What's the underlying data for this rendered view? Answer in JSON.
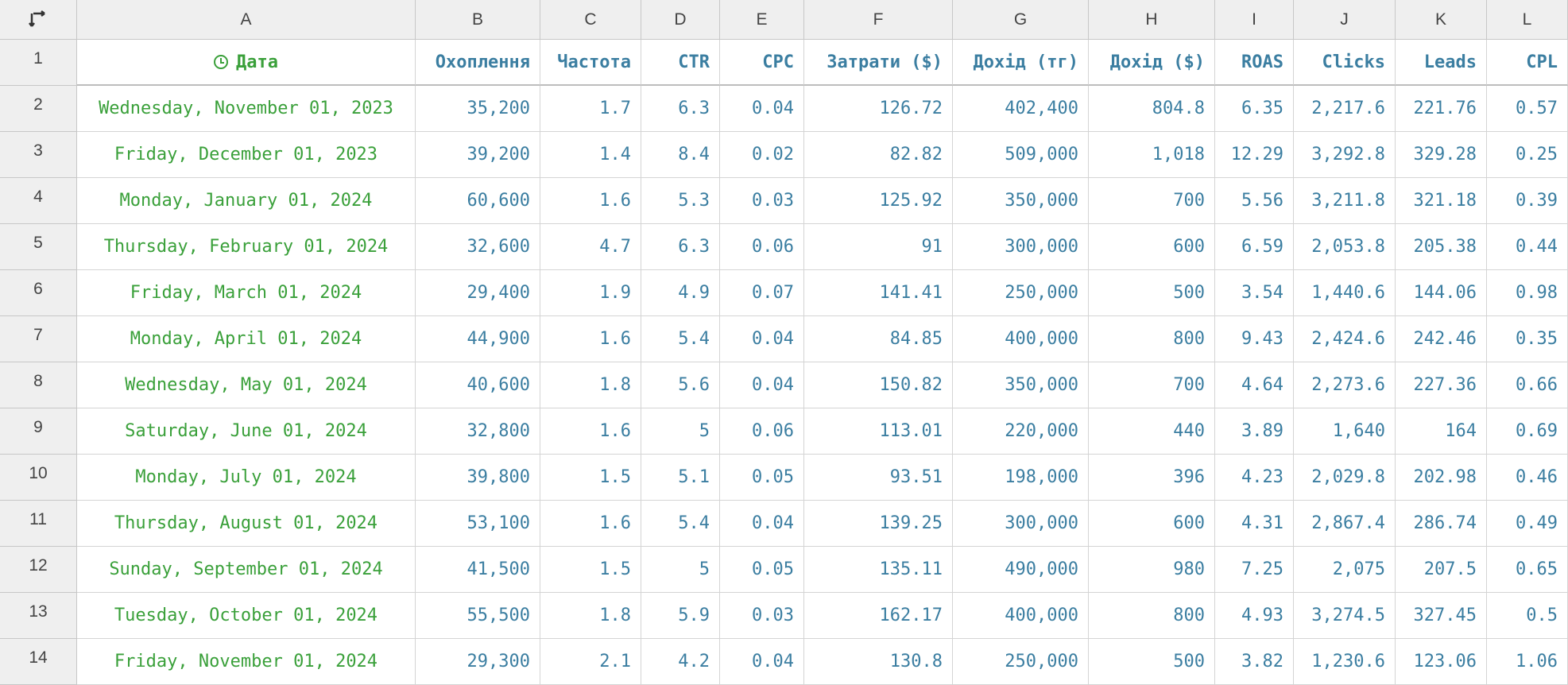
{
  "corner_icon": "sort-arrows-icon",
  "colors": {
    "accent_number": "#3b7ea1",
    "accent_date": "#3aa03a",
    "header_bg": "#efefef"
  },
  "columns": [
    "A",
    "B",
    "C",
    "D",
    "E",
    "F",
    "G",
    "H",
    "I",
    "J",
    "K",
    "L"
  ],
  "header_row": {
    "row_number": "1",
    "date_icon": "clock-icon",
    "cells": [
      "Дата",
      "Охоплення",
      "Частота",
      "CTR",
      "CPC",
      "Затрати ($)",
      "Дохід (тг)",
      "Дохід ($)",
      "ROAS",
      "Clicks",
      "Leads",
      "CPL"
    ]
  },
  "rows": [
    {
      "num": "2",
      "cells": [
        "Wednesday, November 01, 2023",
        "35,200",
        "1.7",
        "6.3",
        "0.04",
        "126.72",
        "402,400",
        "804.8",
        "6.35",
        "2,217.6",
        "221.76",
        "0.57"
      ]
    },
    {
      "num": "3",
      "cells": [
        "Friday, December 01, 2023",
        "39,200",
        "1.4",
        "8.4",
        "0.02",
        "82.82",
        "509,000",
        "1,018",
        "12.29",
        "3,292.8",
        "329.28",
        "0.25"
      ]
    },
    {
      "num": "4",
      "cells": [
        "Monday, January 01, 2024",
        "60,600",
        "1.6",
        "5.3",
        "0.03",
        "125.92",
        "350,000",
        "700",
        "5.56",
        "3,211.8",
        "321.18",
        "0.39"
      ]
    },
    {
      "num": "5",
      "cells": [
        "Thursday, February 01, 2024",
        "32,600",
        "4.7",
        "6.3",
        "0.06",
        "91",
        "300,000",
        "600",
        "6.59",
        "2,053.8",
        "205.38",
        "0.44"
      ]
    },
    {
      "num": "6",
      "cells": [
        "Friday, March 01, 2024",
        "29,400",
        "1.9",
        "4.9",
        "0.07",
        "141.41",
        "250,000",
        "500",
        "3.54",
        "1,440.6",
        "144.06",
        "0.98"
      ]
    },
    {
      "num": "7",
      "cells": [
        "Monday, April 01, 2024",
        "44,900",
        "1.6",
        "5.4",
        "0.04",
        "84.85",
        "400,000",
        "800",
        "9.43",
        "2,424.6",
        "242.46",
        "0.35"
      ]
    },
    {
      "num": "8",
      "cells": [
        "Wednesday, May 01, 2024",
        "40,600",
        "1.8",
        "5.6",
        "0.04",
        "150.82",
        "350,000",
        "700",
        "4.64",
        "2,273.6",
        "227.36",
        "0.66"
      ]
    },
    {
      "num": "9",
      "cells": [
        "Saturday, June 01, 2024",
        "32,800",
        "1.6",
        "5",
        "0.06",
        "113.01",
        "220,000",
        "440",
        "3.89",
        "1,640",
        "164",
        "0.69"
      ]
    },
    {
      "num": "10",
      "cells": [
        "Monday, July 01, 2024",
        "39,800",
        "1.5",
        "5.1",
        "0.05",
        "93.51",
        "198,000",
        "396",
        "4.23",
        "2,029.8",
        "202.98",
        "0.46"
      ]
    },
    {
      "num": "11",
      "cells": [
        "Thursday, August 01, 2024",
        "53,100",
        "1.6",
        "5.4",
        "0.04",
        "139.25",
        "300,000",
        "600",
        "4.31",
        "2,867.4",
        "286.74",
        "0.49"
      ]
    },
    {
      "num": "12",
      "cells": [
        "Sunday, September 01, 2024",
        "41,500",
        "1.5",
        "5",
        "0.05",
        "135.11",
        "490,000",
        "980",
        "7.25",
        "2,075",
        "207.5",
        "0.65"
      ]
    },
    {
      "num": "13",
      "cells": [
        "Tuesday, October 01, 2024",
        "55,500",
        "1.8",
        "5.9",
        "0.03",
        "162.17",
        "400,000",
        "800",
        "4.93",
        "3,274.5",
        "327.45",
        "0.5"
      ]
    },
    {
      "num": "14",
      "cells": [
        "Friday, November 01, 2024",
        "29,300",
        "2.1",
        "4.2",
        "0.04",
        "130.8",
        "250,000",
        "500",
        "3.82",
        "1,230.6",
        "123.06",
        "1.06"
      ]
    }
  ]
}
